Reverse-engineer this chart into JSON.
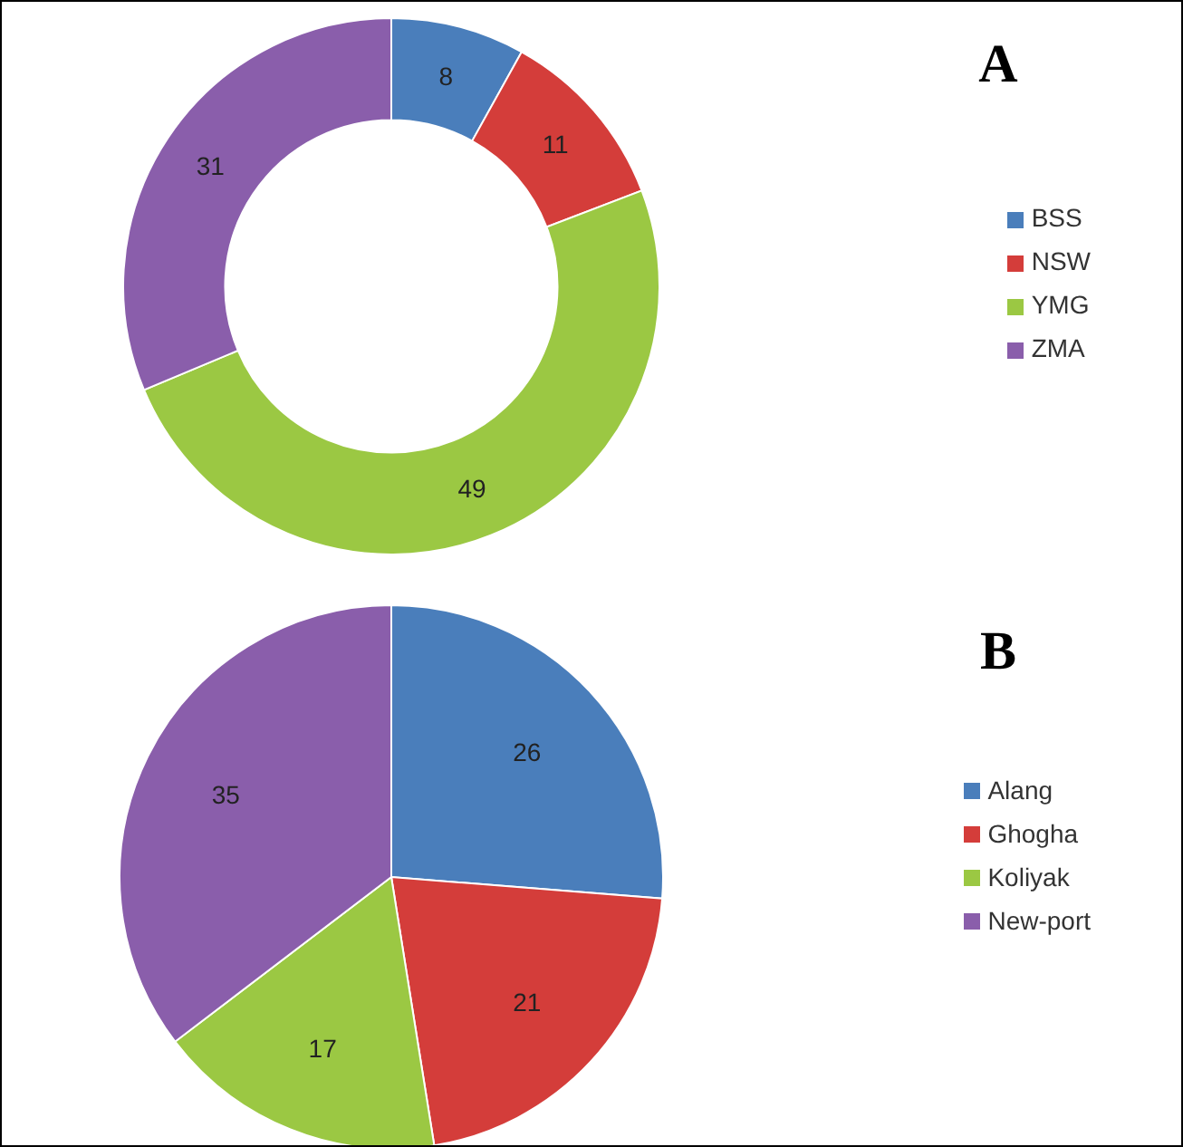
{
  "chart_data": [
    {
      "type": "donut",
      "title": "A",
      "categories": [
        "BSS",
        "NSW",
        "YMG",
        "ZMA"
      ],
      "values": [
        8,
        11,
        49,
        31
      ],
      "colors": [
        "#4a7ebb",
        "#d43d3a",
        "#9bc843",
        "#8a5eab"
      ],
      "data_labels": true,
      "legend": "right"
    },
    {
      "type": "pie",
      "title": "B",
      "categories": [
        "Alang",
        "Ghogha",
        "Koliyak",
        "New-port"
      ],
      "values": [
        26,
        21,
        17,
        35
      ],
      "colors": [
        "#4a7ebb",
        "#d43d3a",
        "#9bc843",
        "#8a5eab"
      ],
      "data_labels": true,
      "legend": "right"
    }
  ]
}
